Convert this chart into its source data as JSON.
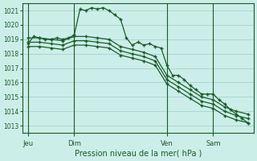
{
  "bg_color": "#cceee8",
  "grid_color": "#a8d8d0",
  "line_color": "#1a5c2a",
  "title": "Pression niveau de la mer( hPa )",
  "ylim": [
    1012.5,
    1021.5
  ],
  "yticks": [
    1013,
    1014,
    1015,
    1016,
    1017,
    1018,
    1019,
    1020,
    1021
  ],
  "day_labels": [
    "Jeu",
    "Dim",
    "Ven",
    "Sam"
  ],
  "day_positions": [
    0,
    24,
    72,
    96
  ],
  "xlim": [
    -3,
    117
  ],
  "series1_x": [
    0,
    3,
    6,
    9,
    12,
    15,
    18,
    21,
    24,
    27,
    30,
    33,
    36,
    39,
    42,
    45,
    48,
    51,
    54,
    57,
    60,
    63,
    66,
    69,
    72,
    75,
    78,
    81,
    84,
    87,
    90,
    93,
    96,
    99,
    102,
    105,
    108,
    111,
    114
  ],
  "series1_y": [
    1018.7,
    1019.2,
    1019.1,
    1019.0,
    1019.0,
    1019.1,
    1019.0,
    1019.1,
    1019.3,
    1021.1,
    1021.0,
    1021.2,
    1021.1,
    1021.2,
    1021.0,
    1020.7,
    1020.4,
    1019.1,
    1018.6,
    1018.8,
    1018.6,
    1018.7,
    1018.5,
    1018.4,
    1017.2,
    1016.5,
    1016.5,
    1016.2,
    1015.8,
    1015.5,
    1015.2,
    1015.2,
    1015.2,
    1014.8,
    1014.5,
    1014.1,
    1013.8,
    1013.5,
    1013.2
  ],
  "series2_x": [
    0,
    6,
    12,
    18,
    24,
    30,
    36,
    42,
    48,
    54,
    60,
    66,
    72,
    78,
    84,
    90,
    96,
    102,
    108,
    114
  ],
  "series2_y": [
    1019.1,
    1019.1,
    1019.0,
    1018.9,
    1019.2,
    1019.2,
    1019.1,
    1019.0,
    1018.5,
    1018.3,
    1018.1,
    1017.8,
    1016.5,
    1016.0,
    1015.5,
    1015.0,
    1014.8,
    1014.3,
    1014.0,
    1013.8
  ],
  "series3_x": [
    0,
    6,
    12,
    18,
    24,
    30,
    36,
    42,
    48,
    54,
    60,
    66,
    72,
    78,
    84,
    90,
    96,
    102,
    108,
    114
  ],
  "series3_y": [
    1018.8,
    1018.8,
    1018.7,
    1018.6,
    1018.9,
    1018.9,
    1018.8,
    1018.7,
    1018.2,
    1018.0,
    1017.8,
    1017.5,
    1016.2,
    1015.7,
    1015.2,
    1014.7,
    1014.5,
    1014.0,
    1013.7,
    1013.5
  ],
  "series4_x": [
    0,
    6,
    12,
    18,
    24,
    30,
    36,
    42,
    48,
    54,
    60,
    66,
    72,
    78,
    84,
    90,
    96,
    102,
    108,
    114
  ],
  "series4_y": [
    1018.5,
    1018.5,
    1018.4,
    1018.3,
    1018.6,
    1018.6,
    1018.5,
    1018.4,
    1017.9,
    1017.7,
    1017.5,
    1017.2,
    1015.9,
    1015.4,
    1014.9,
    1014.4,
    1014.2,
    1013.7,
    1013.4,
    1013.2
  ]
}
